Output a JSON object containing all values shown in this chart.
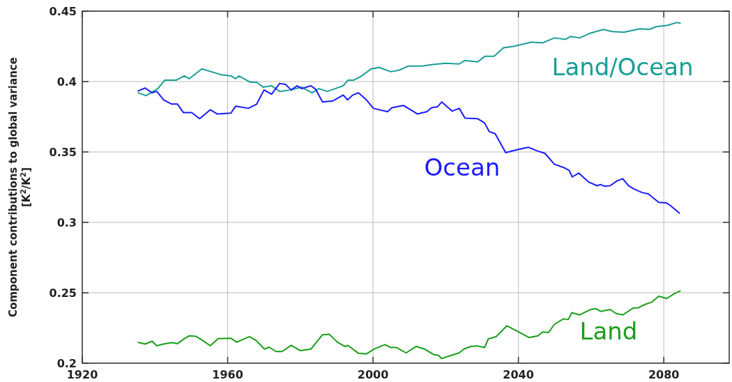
{
  "chart_data": {
    "type": "line",
    "ylabel": "Component contributions to global variance\n[K$^{2}$/K$^{2}$]",
    "xlim": [
      1920,
      2098
    ],
    "xticks": [
      1920,
      1960,
      2000,
      2040,
      2080
    ],
    "ylim": [
      0.2,
      0.45
    ],
    "yticks": [
      {
        "value": 0.2,
        "label": "0.2"
      },
      {
        "value": 0.25,
        "label": "0.25"
      },
      {
        "value": 0.3,
        "label": "0.3"
      },
      {
        "value": 0.35,
        "label": "0.35"
      },
      {
        "value": 0.4,
        "label": "0.4"
      },
      {
        "value": 0.45,
        "label": "0.45"
      }
    ],
    "grid": true,
    "marker": "none",
    "line_style": "solid",
    "series": [
      {
        "name": "Land/Ocean",
        "color": "#1a9e96",
        "x": [
          1935.4,
          1937.6,
          1940.8,
          1942.7,
          1945.9,
          1948.1,
          1949.4,
          1952.9,
          1958.0,
          1960.9,
          1962.2,
          1963.1,
          1966.3,
          1968.0,
          1969.8,
          1972.1,
          1974.3,
          1977.2,
          1980.4,
          1983.2,
          1985.1,
          1987.4,
          1989.6,
          1991.8,
          1993.1,
          1994.7,
          1996.9,
          1999.5,
          2001.7,
          2004.9,
          2007.1,
          2009.7,
          2013.5,
          2016.1,
          2019.9,
          2023.7,
          2025.3,
          2028.8,
          2030.8,
          2033.3,
          2035.9,
          2038.7,
          2040.3,
          2043.5,
          2046.7,
          2049.9,
          2053.0,
          2054.3,
          2056.9,
          2059.4,
          2063.3,
          2065.8,
          2069.0,
          2073.5,
          2076.0,
          2077.9,
          2081.1,
          2083.7,
          2084.5
        ],
        "values": [
          0.392,
          0.39,
          0.395,
          0.401,
          0.401,
          0.404,
          0.402,
          0.409,
          0.405,
          0.404,
          0.402,
          0.404,
          0.3995,
          0.3995,
          0.396,
          0.397,
          0.393,
          0.394,
          0.396,
          0.392,
          0.395,
          0.393,
          0.395,
          0.397,
          0.401,
          0.401,
          0.404,
          0.409,
          0.41,
          0.407,
          0.408,
          0.411,
          0.411,
          0.412,
          0.413,
          0.4125,
          0.415,
          0.414,
          0.418,
          0.418,
          0.424,
          0.425,
          0.426,
          0.428,
          0.4275,
          0.431,
          0.43,
          0.432,
          0.431,
          0.434,
          0.437,
          0.4355,
          0.435,
          0.4375,
          0.437,
          0.439,
          0.44,
          0.442,
          0.4415
        ]
      },
      {
        "name": "Ocean",
        "color": "#1a1aff",
        "x": [
          1935.4,
          1937.3,
          1939.2,
          1940.5,
          1942.4,
          1944.6,
          1946.2,
          1947.8,
          1950.1,
          1952.3,
          1955.2,
          1957.1,
          1960.9,
          1962.2,
          1965.7,
          1968.0,
          1970.0,
          1972.1,
          1974.3,
          1975.9,
          1977.5,
          1979.1,
          1980.4,
          1982.9,
          1984.2,
          1986.1,
          1989.0,
          1991.8,
          1993.0,
          1994.4,
          1996.0,
          1998.2,
          2000.1,
          2004.0,
          2005.2,
          2008.4,
          2010.3,
          2012.2,
          2014.8,
          2016.1,
          2017.7,
          2018.9,
          2021.8,
          2023.7,
          2025.3,
          2028.8,
          2030.7,
          2032.0,
          2033.6,
          2036.5,
          2038.7,
          2040.3,
          2042.8,
          2045.1,
          2047.3,
          2049.9,
          2052.4,
          2054.0,
          2054.8,
          2056.6,
          2059.4,
          2061.7,
          2062.6,
          2063.6,
          2065.2,
          2067.1,
          2068.7,
          2070.3,
          2071.9,
          2074.1,
          2075.7,
          2078.6,
          2080.8,
          2081.8,
          2084.3
        ],
        "values": [
          0.3934,
          0.3954,
          0.392,
          0.393,
          0.387,
          0.384,
          0.384,
          0.378,
          0.378,
          0.3736,
          0.38,
          0.377,
          0.3776,
          0.3825,
          0.381,
          0.384,
          0.394,
          0.391,
          0.3987,
          0.398,
          0.394,
          0.397,
          0.395,
          0.397,
          0.3946,
          0.3855,
          0.3863,
          0.3904,
          0.387,
          0.3904,
          0.392,
          0.387,
          0.381,
          0.3786,
          0.3814,
          0.383,
          0.38,
          0.377,
          0.3786,
          0.3814,
          0.382,
          0.3855,
          0.379,
          0.381,
          0.374,
          0.3736,
          0.3706,
          0.3644,
          0.363,
          0.3495,
          0.351,
          0.352,
          0.3533,
          0.3508,
          0.349,
          0.3413,
          0.339,
          0.3368,
          0.3323,
          0.335,
          0.3285,
          0.326,
          0.3269,
          0.3257,
          0.326,
          0.3294,
          0.331,
          0.326,
          0.3236,
          0.3211,
          0.3203,
          0.3142,
          0.3137,
          0.312,
          0.3066
        ]
      },
      {
        "name": "Land",
        "color": "#1a9e1a",
        "x": [
          1935.4,
          1937.3,
          1939.2,
          1940.5,
          1942.4,
          1944.6,
          1946.2,
          1947.8,
          1949.4,
          1951.3,
          1953.2,
          1955.2,
          1957.4,
          1960.9,
          1962.5,
          1966.0,
          1967.9,
          1970.1,
          1971.4,
          1973.3,
          1975.0,
          1977.5,
          1980.0,
          1982.9,
          1986.1,
          1988.0,
          1990.2,
          1992.2,
          1993.1,
          1996.0,
          1998.2,
          2000.5,
          2003.3,
          2004.9,
          2006.5,
          2009.1,
          2011.9,
          2014.2,
          2016.7,
          2018.0,
          2018.9,
          2021.2,
          2023.7,
          2025.0,
          2026.9,
          2028.8,
          2030.7,
          2031.7,
          2033.9,
          2036.8,
          2039.7,
          2042.9,
          2045.4,
          2046.7,
          2048.3,
          2049.9,
          2052.4,
          2053.7,
          2054.7,
          2056.9,
          2059.8,
          2061.4,
          2062.6,
          2065.2,
          2066.8,
          2068.7,
          2071.6,
          2072.8,
          2074.8,
          2076.7,
          2078.6,
          2080.8,
          2083.1,
          2084.5
        ],
        "values": [
          0.2147,
          0.2136,
          0.2156,
          0.2124,
          0.2136,
          0.2146,
          0.2139,
          0.2169,
          0.2194,
          0.219,
          0.216,
          0.2124,
          0.2174,
          0.2177,
          0.2149,
          0.2189,
          0.216,
          0.21,
          0.2114,
          0.2083,
          0.2083,
          0.2127,
          0.2089,
          0.21,
          0.2202,
          0.2205,
          0.2149,
          0.2119,
          0.2126,
          0.207,
          0.2066,
          0.2103,
          0.2132,
          0.2111,
          0.2111,
          0.2073,
          0.2119,
          0.21,
          0.2061,
          0.2056,
          0.2033,
          0.2053,
          0.2073,
          0.21,
          0.2119,
          0.2122,
          0.2111,
          0.2172,
          0.2189,
          0.2265,
          0.2227,
          0.2182,
          0.2194,
          0.2222,
          0.2218,
          0.2276,
          0.2315,
          0.231,
          0.2359,
          0.2343,
          0.2381,
          0.2387,
          0.2368,
          0.2381,
          0.2354,
          0.2343,
          0.2392,
          0.2392,
          0.2417,
          0.2434,
          0.2475,
          0.2459,
          0.2497,
          0.2513
        ]
      }
    ]
  }
}
